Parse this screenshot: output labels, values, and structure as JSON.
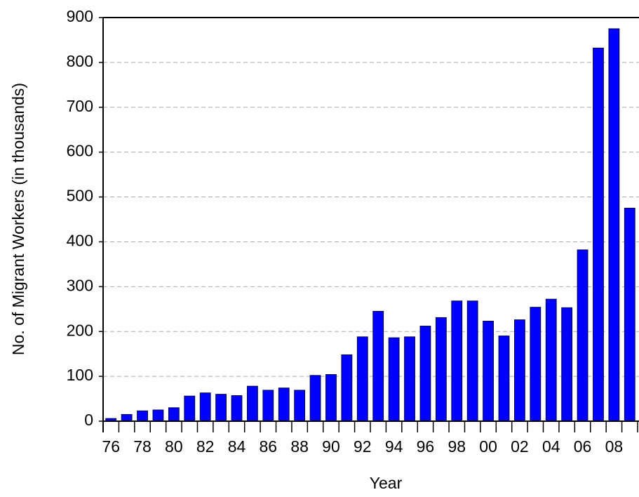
{
  "chart_data": {
    "type": "bar",
    "x_label": "Year",
    "y_label": "No. of Migrant Workers (in thousands)",
    "categories": [
      "76",
      null,
      "78",
      null,
      "80",
      null,
      "82",
      null,
      "84",
      null,
      "86",
      null,
      "88",
      null,
      "90",
      null,
      "92",
      null,
      "94",
      null,
      "96",
      null,
      "98",
      null,
      "00",
      null,
      "02",
      null,
      "04",
      null,
      "06",
      null,
      "08",
      null
    ],
    "values": [
      6,
      15,
      23,
      25,
      30,
      56,
      63,
      60,
      57,
      78,
      69,
      74,
      69,
      102,
      104,
      148,
      188,
      245,
      186,
      188,
      212,
      231,
      268,
      268,
      223,
      190,
      226,
      254,
      272,
      253,
      382,
      832,
      875,
      475
    ],
    "color": "#0000ff",
    "ylim": [
      0,
      900
    ],
    "yticks": [
      0,
      100,
      200,
      300,
      400,
      500,
      600,
      700,
      800,
      900
    ],
    "grid": true
  }
}
